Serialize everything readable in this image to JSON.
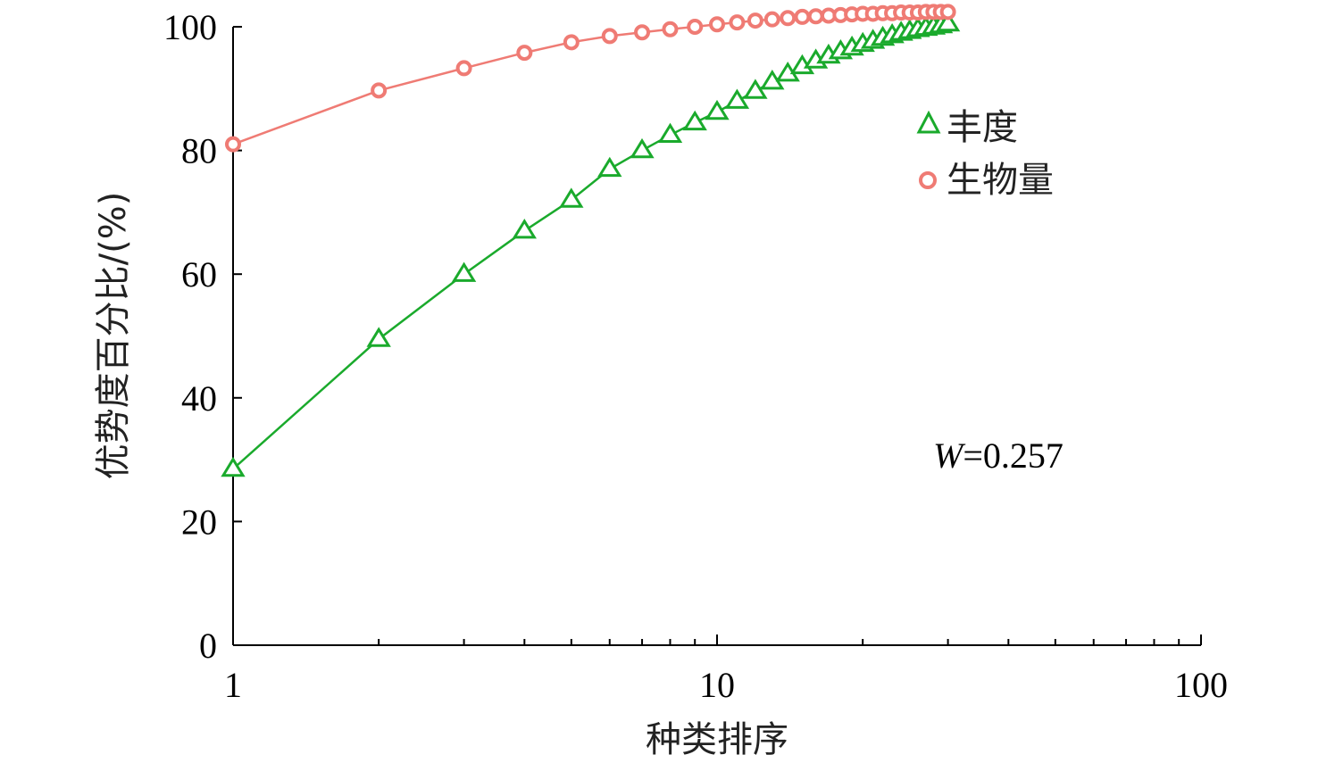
{
  "chart_data": {
    "type": "line",
    "xlabel": "种类排序",
    "ylabel": "优势度百分比/(%)",
    "x_scale": "log",
    "xlim": [
      1,
      100
    ],
    "ylim": [
      0,
      100
    ],
    "x_ticks": [
      "1",
      "10",
      "100"
    ],
    "y_ticks": [
      "0",
      "20",
      "40",
      "60",
      "80",
      "100"
    ],
    "grid": false,
    "legend_position": "right",
    "annotation": {
      "italic": "W",
      "text": "=0.257"
    },
    "series": [
      {
        "name": "丰度",
        "marker": "triangle",
        "color": "#1aaa2c",
        "x": [
          1,
          2,
          3,
          4,
          5,
          6,
          7,
          8,
          9,
          10,
          11,
          12,
          13,
          14,
          15,
          16,
          17,
          18,
          19,
          20,
          21,
          22,
          23,
          24,
          25,
          26,
          27,
          28,
          29,
          30
        ],
        "values": [
          28.5,
          49.5,
          60,
          67,
          72,
          77,
          80,
          82.5,
          84.5,
          86.2,
          88,
          89.6,
          91.1,
          92.4,
          93.6,
          94.5,
          95.3,
          96,
          96.6,
          97.2,
          97.7,
          98.2,
          98.6,
          99,
          99.3,
          99.6,
          99.8,
          100,
          100.2,
          100.5
        ]
      },
      {
        "name": "生物量",
        "marker": "circle",
        "color": "#ef7b74",
        "x": [
          1,
          2,
          3,
          4,
          5,
          6,
          7,
          8,
          9,
          10,
          11,
          12,
          13,
          14,
          15,
          16,
          17,
          18,
          19,
          20,
          21,
          22,
          23,
          24,
          25,
          26,
          27,
          28,
          29,
          30
        ],
        "values": [
          81,
          89.7,
          93.3,
          95.8,
          97.5,
          98.5,
          99.1,
          99.6,
          100,
          100.4,
          100.7,
          101,
          101.2,
          101.4,
          101.6,
          101.7,
          101.8,
          101.9,
          102,
          102.1,
          102.1,
          102.2,
          102.2,
          102.3,
          102.3,
          102.3,
          102.4,
          102.4,
          102.4,
          102.4
        ]
      }
    ]
  }
}
